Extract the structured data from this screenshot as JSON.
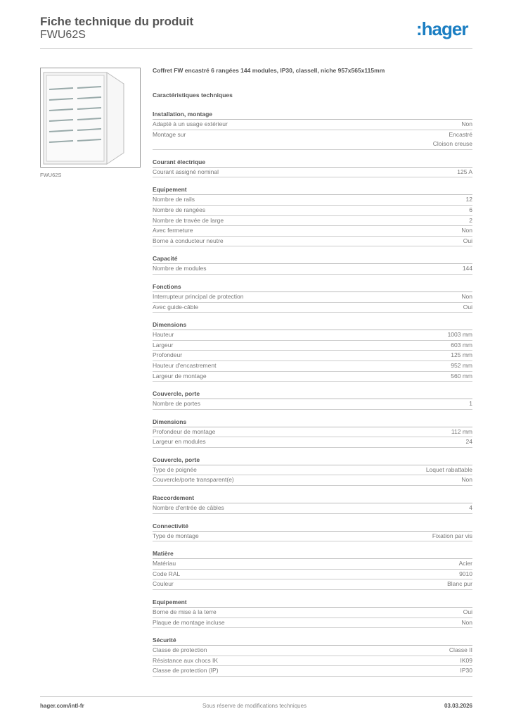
{
  "header": {
    "title": "Fiche technique du produit",
    "subtitle": "FWU62S",
    "logo_text": ":hager",
    "brand_color": "#1b7ec2"
  },
  "product": {
    "image_caption": "FWU62S",
    "description": "Coffret FW encastré 6 rangées 144 modules, IP30, classeII, niche 957x565x115mm",
    "specs_title": "Caractéristiques techniques"
  },
  "sections": [
    {
      "title": "Installation, montage",
      "rows": [
        {
          "label": "Adapté à un usage extérieur",
          "value": "Non"
        },
        {
          "label": "Montage sur",
          "value": "Encastré\nCloison creuse"
        }
      ]
    },
    {
      "title": "Courant électrique",
      "rows": [
        {
          "label": "Courant assigné nominal",
          "value": "125 A"
        }
      ]
    },
    {
      "title": "Equipement",
      "rows": [
        {
          "label": "Nombre de rails",
          "value": "12"
        },
        {
          "label": "Nombre de rangées",
          "value": "6"
        },
        {
          "label": "Nombre de travée de large",
          "value": "2"
        },
        {
          "label": "Avec fermeture",
          "value": "Non"
        },
        {
          "label": "Borne à conducteur neutre",
          "value": "Oui"
        }
      ]
    },
    {
      "title": "Capacité",
      "rows": [
        {
          "label": "Nombre de modules",
          "value": "144"
        }
      ]
    },
    {
      "title": "Fonctions",
      "rows": [
        {
          "label": "Interrupteur principal de protection",
          "value": "Non"
        },
        {
          "label": "Avec guide-câble",
          "value": "Oui"
        }
      ]
    },
    {
      "title": "Dimensions",
      "rows": [
        {
          "label": "Hauteur",
          "value": "1003 mm"
        },
        {
          "label": "Largeur",
          "value": "603 mm"
        },
        {
          "label": "Profondeur",
          "value": "125 mm"
        },
        {
          "label": "Hauteur d'encastrement",
          "value": "952 mm"
        },
        {
          "label": "Largeur de montage",
          "value": "560 mm"
        }
      ]
    },
    {
      "title": "Couvercle, porte",
      "rows": [
        {
          "label": "Nombre de portes",
          "value": "1"
        }
      ]
    },
    {
      "title": "Dimensions",
      "rows": [
        {
          "label": "Profondeur de montage",
          "value": "112 mm"
        },
        {
          "label": "Largeur en modules",
          "value": "24"
        }
      ]
    },
    {
      "title": "Couvercle, porte",
      "rows": [
        {
          "label": "Type de poignée",
          "value": "Loquet rabattable"
        },
        {
          "label": "Couvercle/porte transparent(e)",
          "value": "Non"
        }
      ]
    },
    {
      "title": "Raccordement",
      "rows": [
        {
          "label": "Nombre d'entrée de câbles",
          "value": "4"
        }
      ]
    },
    {
      "title": "Connectivité",
      "rows": [
        {
          "label": "Type de montage",
          "value": "Fixation par vis"
        }
      ]
    },
    {
      "title": "Matière",
      "rows": [
        {
          "label": "Matériau",
          "value": "Acier"
        },
        {
          "label": "Code RAL",
          "value": "9010"
        },
        {
          "label": "Couleur",
          "value": "Blanc pur"
        }
      ]
    },
    {
      "title": "Equipement",
      "rows": [
        {
          "label": "Borne de mise à la terre",
          "value": "Oui"
        },
        {
          "label": "Plaque de montage incluse",
          "value": "Non"
        }
      ]
    },
    {
      "title": "Sécurité",
      "rows": [
        {
          "label": "Classe de protection",
          "value": "Classe II"
        },
        {
          "label": "Résistance aux chocs IK",
          "value": "IK09"
        },
        {
          "label": "Classe de protection (IP)",
          "value": "IP30"
        }
      ]
    }
  ],
  "footer": {
    "website": "hager.com/intl-fr",
    "disclaimer": "Sous réserve de modifications techniques",
    "date": "03.03.2026"
  }
}
